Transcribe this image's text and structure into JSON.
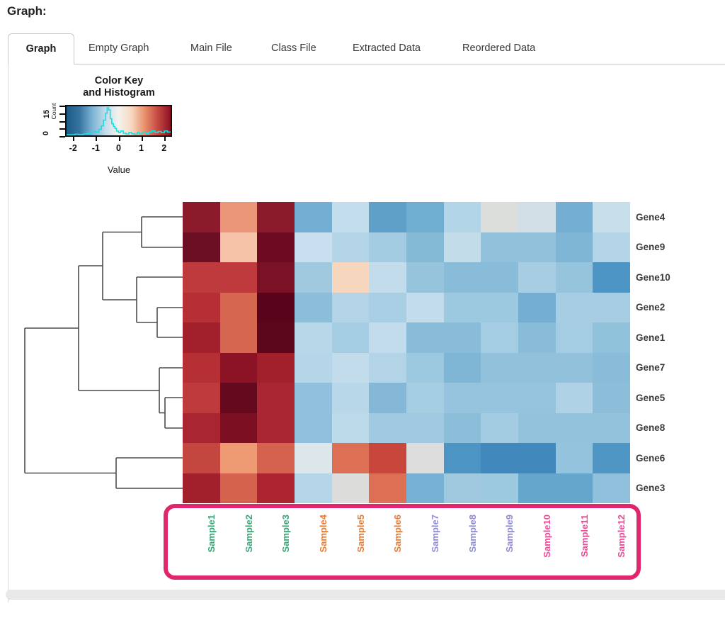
{
  "page": {
    "heading": "Graph:"
  },
  "tabs": [
    {
      "label": "Graph",
      "active": true
    },
    {
      "label": "Empty Graph",
      "active": false
    },
    {
      "label": "Main File",
      "active": false
    },
    {
      "label": "Class File",
      "active": false
    },
    {
      "label": "Extracted Data",
      "active": false
    },
    {
      "label": "Reordered Data",
      "active": false
    }
  ],
  "highlight": {
    "color": "#e0276e"
  },
  "chart_data": {
    "type": "heatmap",
    "title": "Color Key and Histogram",
    "color_key": {
      "title_line1": "Color Key",
      "title_line2": "and Histogram",
      "xlabel": "Value",
      "ylabel": "Count",
      "x_ticks": [
        "-2",
        "-1",
        "0",
        "1",
        "2"
      ],
      "y_tick_labels": [
        "0",
        "15"
      ],
      "value_range": [
        -2.35,
        2.35
      ],
      "count_range": [
        0,
        17
      ],
      "gradient_stops": [
        "#1d5c87",
        "#36749f",
        "#7cb4d4",
        "#c6dcea",
        "#f3f2ee",
        "#f8d8c1",
        "#e8906c",
        "#c64a42",
        "#8c1023"
      ],
      "histogram_color": "#18e0e0",
      "histogram_points": [
        [
          0,
          0.02
        ],
        [
          0.05,
          0.02
        ],
        [
          0.08,
          0.04
        ],
        [
          0.12,
          0.03
        ],
        [
          0.16,
          0.05
        ],
        [
          0.2,
          0.08
        ],
        [
          0.24,
          0.14
        ],
        [
          0.28,
          0.12
        ],
        [
          0.31,
          0.22
        ],
        [
          0.335,
          0.35
        ],
        [
          0.355,
          0.55
        ],
        [
          0.375,
          0.8
        ],
        [
          0.39,
          1.0
        ],
        [
          0.405,
          0.92
        ],
        [
          0.42,
          0.6
        ],
        [
          0.435,
          0.42
        ],
        [
          0.45,
          0.32
        ],
        [
          0.465,
          0.25
        ],
        [
          0.48,
          0.15
        ],
        [
          0.5,
          0.1
        ],
        [
          0.52,
          0.16
        ],
        [
          0.545,
          0.08
        ],
        [
          0.57,
          0.05
        ],
        [
          0.6,
          0.1
        ],
        [
          0.625,
          0.06
        ],
        [
          0.65,
          0.04
        ],
        [
          0.68,
          0.1
        ],
        [
          0.7,
          0.05
        ],
        [
          0.73,
          0.1
        ],
        [
          0.76,
          0.07
        ],
        [
          0.79,
          0.12
        ],
        [
          0.82,
          0.16
        ],
        [
          0.85,
          0.1
        ],
        [
          0.88,
          0.14
        ],
        [
          0.91,
          0.1
        ],
        [
          0.94,
          0.16
        ],
        [
          0.97,
          0.12
        ],
        [
          1.0,
          0.13
        ]
      ]
    },
    "rows": [
      "Gene4",
      "Gene9",
      "Gene10",
      "Gene2",
      "Gene1",
      "Gene7",
      "Gene5",
      "Gene8",
      "Gene6",
      "Gene3"
    ],
    "columns": [
      "Sample1",
      "Sample2",
      "Sample3",
      "Sample4",
      "Sample5",
      "Sample6",
      "Sample7",
      "Sample8",
      "Sample9",
      "Sample10",
      "Sample11",
      "Sample12"
    ],
    "column_label_colors": [
      "#35a877",
      "#35a877",
      "#35a877",
      "#ec7a30",
      "#ec7a30",
      "#ec7a30",
      "#8f8ad8",
      "#8f8ad8",
      "#8f8ad8",
      "#f04898",
      "#f04898",
      "#f04898"
    ],
    "row_label_color": "#3a3a3a",
    "cell_colors": [
      [
        "#8b1b2b",
        "#ec9679",
        "#8b1b2b",
        "#74aed2",
        "#c3ddec",
        "#5fa0c9",
        "#6fadd1",
        "#b2d5e7",
        "#dcdedc",
        "#d3dfe6",
        "#74aed2",
        "#c7deeb"
      ],
      [
        "#6d0f24",
        "#f7c3a8",
        "#6d0b22",
        "#c7dfee",
        "#b3d5e7",
        "#a3cce2",
        "#85bad7",
        "#c2dcea",
        "#92c1db",
        "#92c1db",
        "#7fb6d5",
        "#b3d5e7"
      ],
      [
        "#bf3a3c",
        "#bf3a3c",
        "#7a1124",
        "#a0c9e0",
        "#f6d6bd",
        "#c2dcec",
        "#96c4dc",
        "#88bcd8",
        "#88bcd8",
        "#a6cde2",
        "#96c4dc",
        "#4d95c4"
      ],
      [
        "#b52f35",
        "#d5664f",
        "#59041a",
        "#8cbeda",
        "#b2d4e6",
        "#a8cfe4",
        "#c2dcec",
        "#9cc8e0",
        "#9cc8e0",
        "#74aed2",
        "#a6cde2",
        "#a6cde2"
      ],
      [
        "#a21f2c",
        "#d5664f",
        "#5c071c",
        "#b8d8ea",
        "#a4cce2",
        "#c2dcec",
        "#88bcd8",
        "#88bcd8",
        "#a4cce2",
        "#88bcd8",
        "#a4cce2",
        "#90c2dc"
      ],
      [
        "#b52f35",
        "#8c1325",
        "#a21f2c",
        "#b4d6e8",
        "#c2dcec",
        "#b2d4e6",
        "#9cc8e0",
        "#80b6d5",
        "#92c1db",
        "#92c1db",
        "#92c1db",
        "#88bcd8"
      ],
      [
        "#bf3a3c",
        "#650a1e",
        "#a82531",
        "#90c0dc",
        "#b8d8ea",
        "#84b8d6",
        "#a6cee2",
        "#96c4de",
        "#96c4de",
        "#96c4de",
        "#b0d2e6",
        "#8cbeda"
      ],
      [
        "#a82531",
        "#7c0f22",
        "#a82531",
        "#90c0dc",
        "#bcdaea",
        "#a0cae2",
        "#9fcae1",
        "#8cbeda",
        "#a3cce2",
        "#92c2dc",
        "#92c2dc",
        "#92c2dc"
      ],
      [
        "#c4473f",
        "#ee9a72",
        "#d4624e",
        "#dde6eb",
        "#dd7054",
        "#c8463c",
        "#dcdddc",
        "#4c94c4",
        "#4189bd",
        "#4189bd",
        "#93c3dd",
        "#4f96c5"
      ],
      [
        "#a21f2c",
        "#d4624c",
        "#ab2430",
        "#b4d6e8",
        "#dcdcda",
        "#dd7054",
        "#77b1d3",
        "#a0c9e0",
        "#9cc8e0",
        "#65a6cc",
        "#65a6cc",
        "#90c0db"
      ]
    ],
    "row_dendrogram": {
      "stroke": "#4d4d4d",
      "segments": [
        [
          200,
          21,
          258,
          21
        ],
        [
          200,
          64,
          258,
          64
        ],
        [
          200,
          21,
          200,
          64
        ],
        [
          145,
          42.5,
          200,
          42.5
        ],
        [
          193,
          106,
          258,
          106
        ],
        [
          222,
          149,
          258,
          149
        ],
        [
          222,
          191,
          258,
          191
        ],
        [
          222,
          149,
          222,
          191
        ],
        [
          193,
          170,
          222,
          170
        ],
        [
          193,
          106,
          193,
          170
        ],
        [
          145,
          138,
          193,
          138
        ],
        [
          145,
          42.5,
          145,
          138
        ],
        [
          111,
          90,
          145,
          90
        ],
        [
          225,
          234,
          258,
          234
        ],
        [
          233,
          276,
          258,
          276
        ],
        [
          233,
          319,
          258,
          319
        ],
        [
          233,
          276,
          233,
          319
        ],
        [
          225,
          297.5,
          233,
          297.5
        ],
        [
          225,
          234,
          225,
          297.5
        ],
        [
          111,
          266,
          225,
          266
        ],
        [
          111,
          90,
          111,
          266
        ],
        [
          35,
          178,
          111,
          178
        ],
        [
          164,
          361,
          258,
          361
        ],
        [
          164,
          404,
          258,
          404
        ],
        [
          164,
          361,
          164,
          404
        ],
        [
          35,
          382.5,
          164,
          382.5
        ],
        [
          35,
          178,
          35,
          382.5
        ]
      ]
    }
  }
}
